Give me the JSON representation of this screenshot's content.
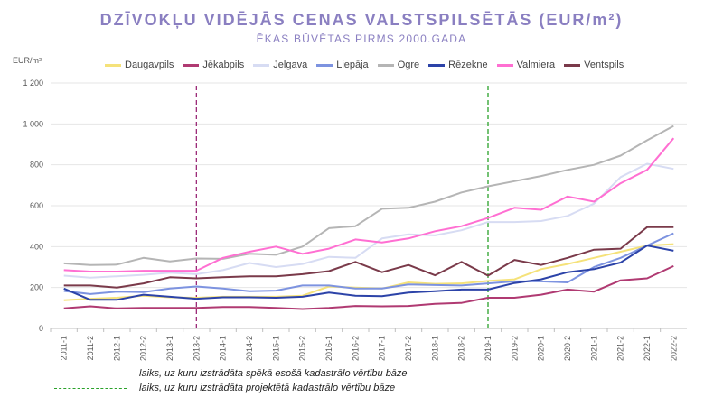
{
  "chart_data": {
    "type": "line",
    "title": "DZĪVOKĻU VIDĒJĀS CENAS VALSTSPILSĒTĀS (EUR/m²)",
    "subtitle": "ĒKAS BŪVĒTAS PIRMS 2000.GADA",
    "ylabel": "EUR/m²",
    "ylim": [
      0,
      1200
    ],
    "yticks": [
      "0",
      "200",
      "400",
      "600",
      "800",
      "1 000",
      "1 200"
    ],
    "grid": true,
    "legend_position": "top",
    "categories": [
      "2011-1",
      "2011-2",
      "2012-1",
      "2012-2",
      "2013-1",
      "2013-2",
      "2014-1",
      "2014-2",
      "2015-1",
      "2015-2",
      "2016-1",
      "2016-2",
      "2017-1",
      "2017-2",
      "2018-1",
      "2018-2",
      "2019-1",
      "2019-2",
      "2020-1",
      "2020-2",
      "2021-1",
      "2021-2",
      "2022-1",
      "2022-2"
    ],
    "series": [
      {
        "name": "Daugavpils",
        "color": "#f5e27a",
        "values": [
          138,
          145,
          150,
          160,
          152,
          150,
          155,
          155,
          155,
          160,
          205,
          200,
          195,
          225,
          218,
          220,
          232,
          240,
          290,
          315,
          345,
          375,
          405,
          412
        ]
      },
      {
        "name": "Jēkabpils",
        "color": "#b03a72",
        "values": [
          98,
          108,
          98,
          100,
          100,
          100,
          105,
          105,
          100,
          95,
          100,
          110,
          108,
          110,
          120,
          125,
          150,
          150,
          165,
          190,
          180,
          235,
          245,
          305
        ]
      },
      {
        "name": "Jelgava",
        "color": "#d7dcf3",
        "values": [
          258,
          248,
          255,
          262,
          272,
          265,
          285,
          320,
          300,
          315,
          350,
          345,
          440,
          460,
          455,
          480,
          520,
          520,
          525,
          550,
          610,
          740,
          805,
          780
        ]
      },
      {
        "name": "Liepāja",
        "color": "#7d93e0",
        "values": [
          183,
          168,
          180,
          178,
          195,
          205,
          195,
          182,
          185,
          210,
          210,
          195,
          195,
          215,
          212,
          210,
          220,
          230,
          230,
          225,
          300,
          345,
          405,
          465
        ]
      },
      {
        "name": "Ogre",
        "color": "#b5b5b5",
        "values": [
          318,
          310,
          312,
          345,
          328,
          342,
          340,
          365,
          360,
          400,
          490,
          500,
          585,
          590,
          620,
          665,
          695,
          720,
          745,
          775,
          800,
          845,
          920,
          990
        ]
      },
      {
        "name": "Rēzekne",
        "color": "#2c43a8",
        "values": [
          195,
          140,
          140,
          165,
          155,
          145,
          152,
          152,
          150,
          155,
          175,
          160,
          158,
          175,
          182,
          190,
          190,
          222,
          240,
          275,
          290,
          322,
          405,
          380
        ]
      },
      {
        "name": "Valmiera",
        "color": "#ff6fd2",
        "values": [
          285,
          278,
          278,
          282,
          282,
          282,
          345,
          375,
          400,
          365,
          390,
          435,
          420,
          440,
          475,
          500,
          540,
          590,
          580,
          645,
          620,
          710,
          775,
          930
        ]
      },
      {
        "name": "Ventspils",
        "color": "#7a3a4a",
        "values": [
          210,
          210,
          200,
          220,
          250,
          245,
          250,
          255,
          255,
          265,
          280,
          325,
          275,
          310,
          260,
          325,
          258,
          335,
          310,
          345,
          385,
          390,
          495,
          495
        ]
      }
    ],
    "annotations": [
      {
        "category": "2013-2",
        "color": "#9b2a77",
        "text": "laiks, uz kuru izstrādāta spēkā esošā kadastrālo vērtību bāze"
      },
      {
        "category": "2019-1",
        "color": "#2aa22a",
        "text": "laiks, uz kuru izstrādāta projektētā kadastrālo vērtību bāze"
      }
    ]
  }
}
